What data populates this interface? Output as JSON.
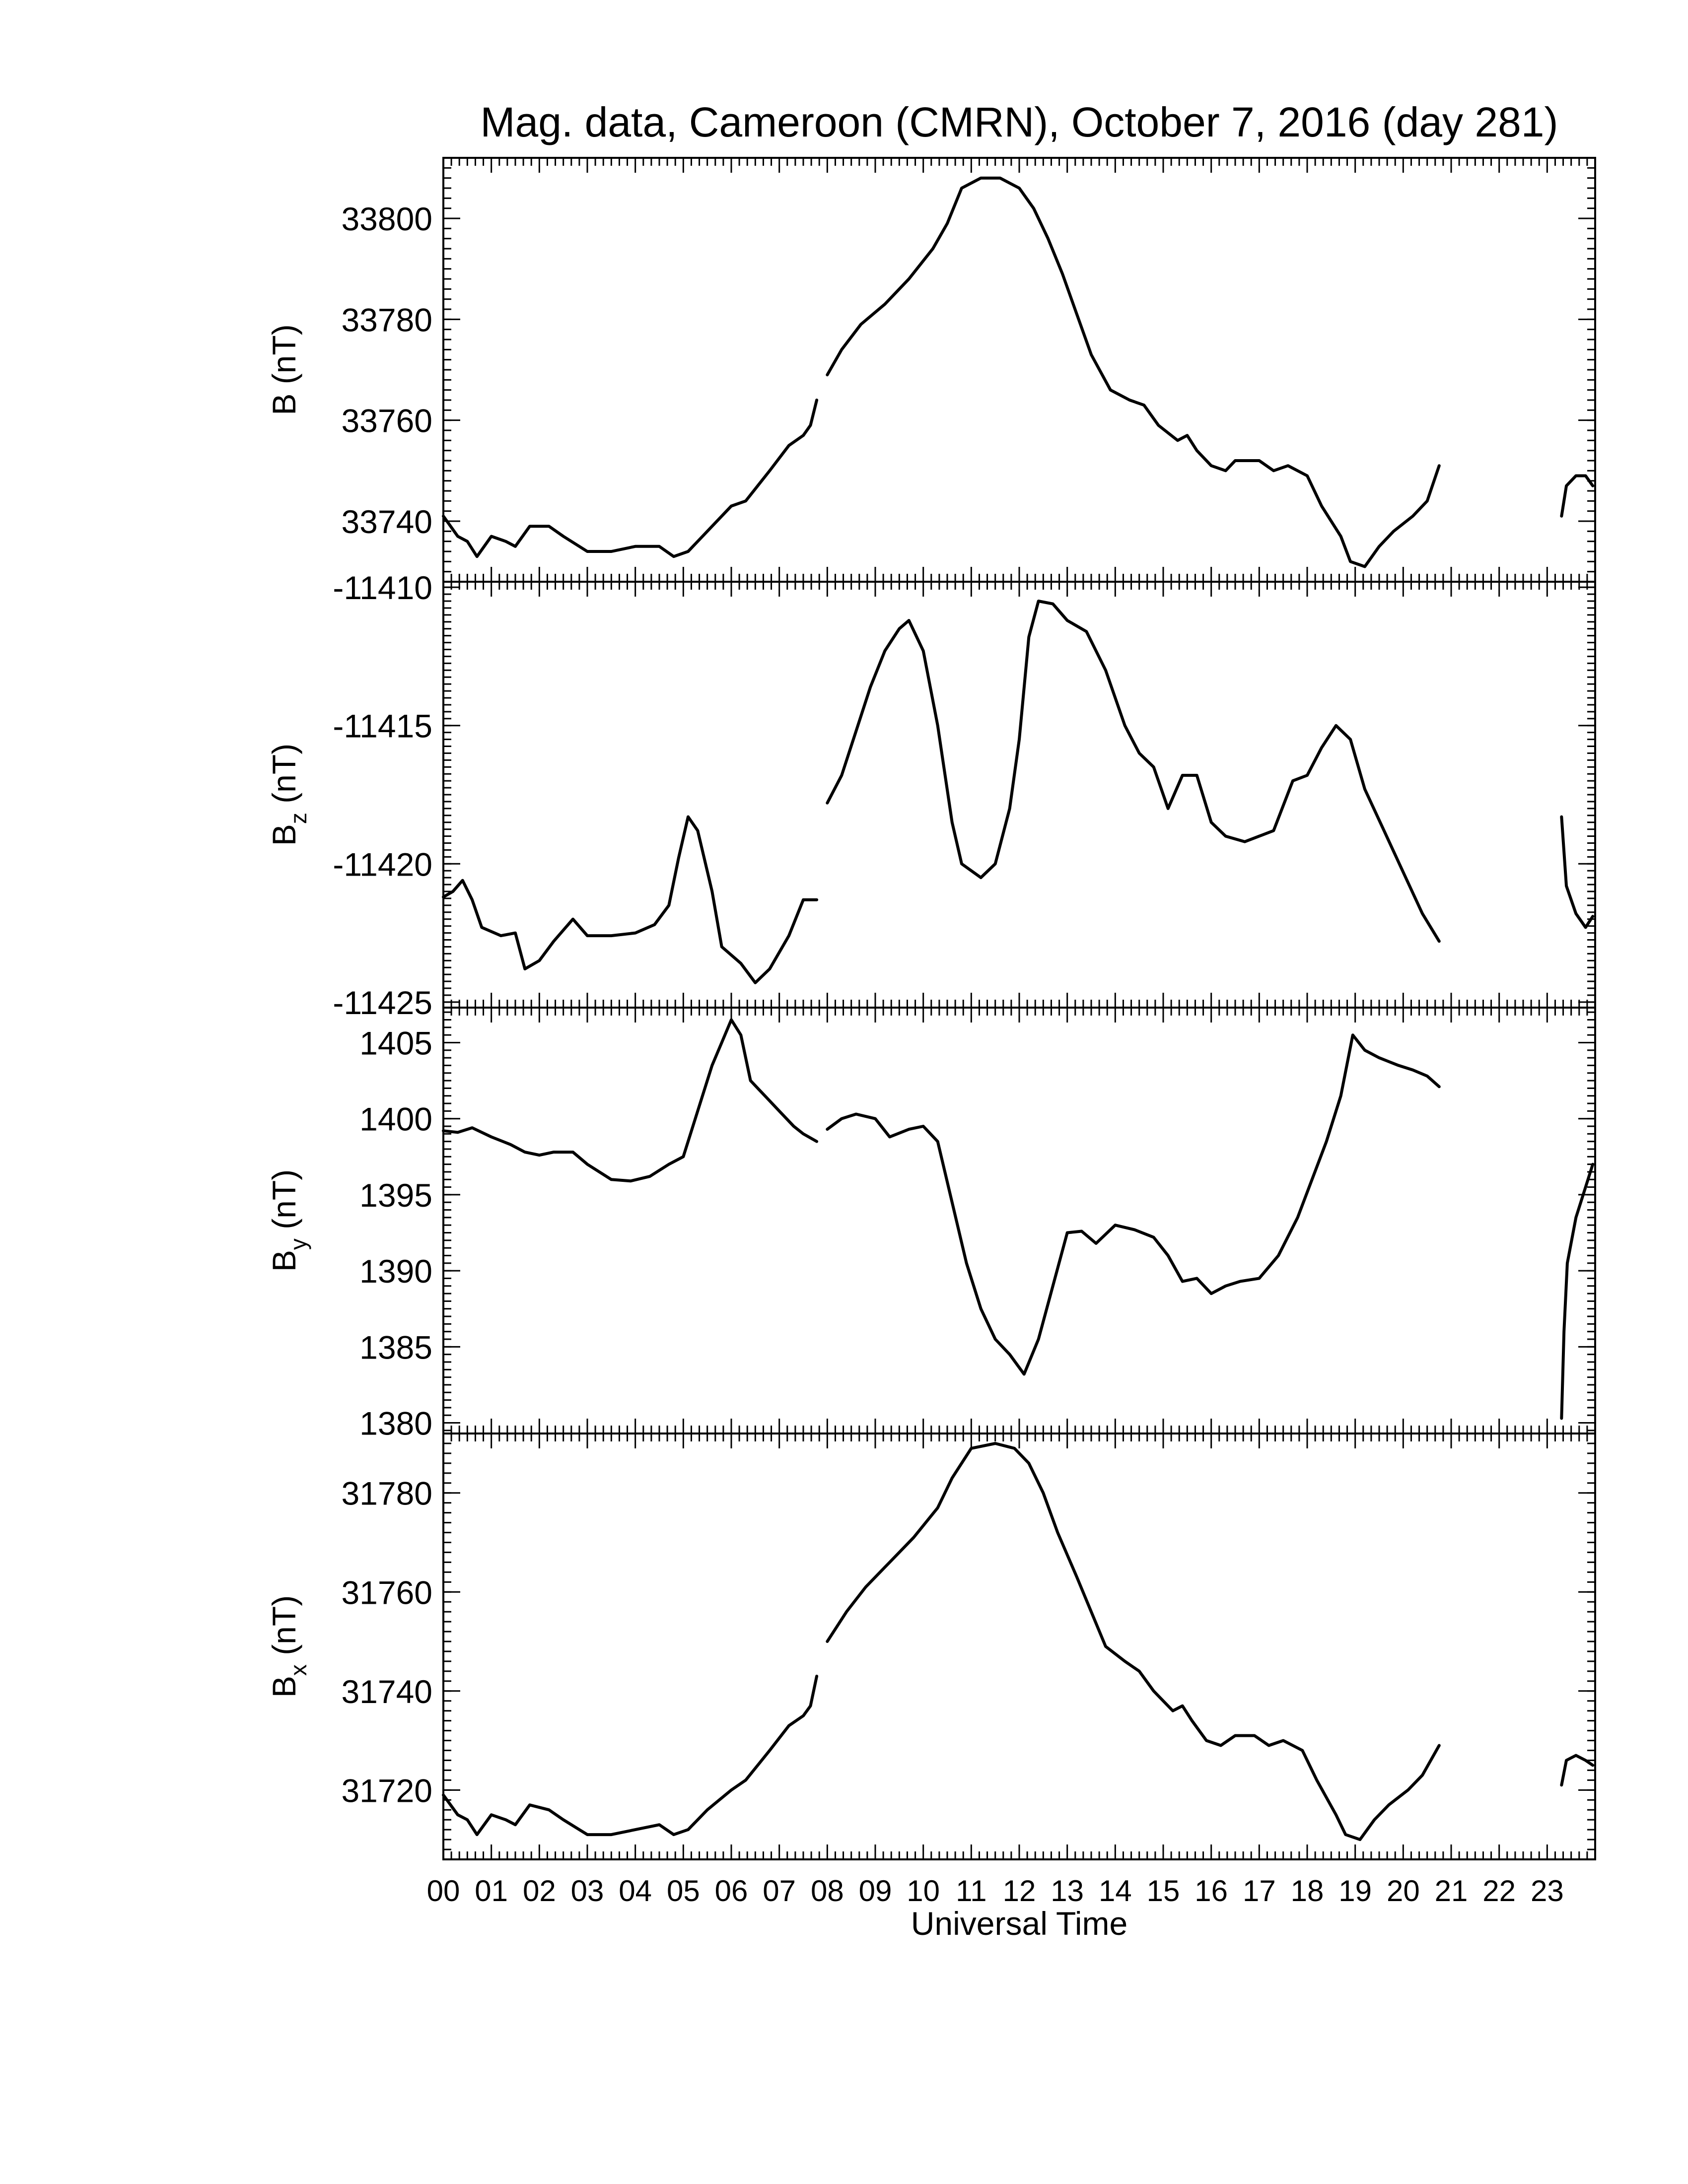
{
  "title": "Mag. data, Cameroon (CMRN), October 7, 2016 (day 281)",
  "chart_data": [
    {
      "type": "line",
      "ylabel": "B (nT)",
      "ylabel_main": "B",
      "ylabel_sub": "",
      "ylabel_unit": " (nT)",
      "ylim": [
        33728,
        33812
      ],
      "yticks": [
        33740,
        33760,
        33780,
        33800
      ],
      "yminor": 2,
      "segments": [
        [
          [
            0.0,
            33741
          ],
          [
            0.3,
            33737
          ],
          [
            0.5,
            33736
          ],
          [
            0.7,
            33733
          ],
          [
            1.0,
            33737
          ],
          [
            1.3,
            33736
          ],
          [
            1.5,
            33735
          ],
          [
            1.8,
            33739
          ],
          [
            2.2,
            33739
          ],
          [
            2.5,
            33737
          ],
          [
            3.0,
            33734
          ],
          [
            3.5,
            33734
          ],
          [
            4.0,
            33735
          ],
          [
            4.5,
            33735
          ],
          [
            4.8,
            33733
          ],
          [
            5.1,
            33734
          ],
          [
            5.5,
            33738
          ],
          [
            6.0,
            33743
          ],
          [
            6.3,
            33744
          ],
          [
            6.8,
            33750
          ],
          [
            7.2,
            33755
          ],
          [
            7.5,
            33757
          ],
          [
            7.65,
            33759
          ],
          [
            7.78,
            33764
          ]
        ],
        [
          [
            8.0,
            33769
          ],
          [
            8.3,
            33774
          ],
          [
            8.7,
            33779
          ],
          [
            9.2,
            33783
          ],
          [
            9.7,
            33788
          ],
          [
            10.2,
            33794
          ],
          [
            10.5,
            33799
          ],
          [
            10.8,
            33806
          ],
          [
            11.2,
            33808
          ],
          [
            11.6,
            33808
          ],
          [
            12.0,
            33806
          ],
          [
            12.3,
            33802
          ],
          [
            12.6,
            33796
          ],
          [
            12.9,
            33789
          ],
          [
            13.2,
            33781
          ],
          [
            13.5,
            33773
          ],
          [
            13.9,
            33766
          ],
          [
            14.3,
            33764
          ],
          [
            14.6,
            33763
          ],
          [
            14.9,
            33759
          ],
          [
            15.3,
            33756
          ],
          [
            15.5,
            33757
          ],
          [
            15.7,
            33754
          ],
          [
            16.0,
            33751
          ],
          [
            16.3,
            33750
          ],
          [
            16.5,
            33752
          ],
          [
            17.0,
            33752
          ],
          [
            17.3,
            33750
          ],
          [
            17.6,
            33751
          ],
          [
            18.0,
            33749
          ],
          [
            18.3,
            33743
          ],
          [
            18.7,
            33737
          ],
          [
            18.9,
            33732
          ],
          [
            19.2,
            33731
          ],
          [
            19.5,
            33735
          ],
          [
            19.8,
            33738
          ],
          [
            20.2,
            33741
          ],
          [
            20.5,
            33744
          ],
          [
            20.75,
            33751
          ]
        ],
        [
          [
            23.3,
            33741
          ],
          [
            23.4,
            33747
          ],
          [
            23.6,
            33749
          ],
          [
            23.8,
            33749
          ],
          [
            23.95,
            33747
          ]
        ]
      ]
    },
    {
      "type": "line",
      "ylabel": "Bz (nT)",
      "ylabel_main": "B",
      "ylabel_sub": "z",
      "ylabel_unit": " (nT)",
      "ylim": [
        -11425.2,
        -11409.8
      ],
      "yticks": [
        -11425,
        -11420,
        -11415,
        -11410
      ],
      "yminor": 0.25,
      "segments": [
        [
          [
            0.0,
            -11421.2
          ],
          [
            0.2,
            -11421.0
          ],
          [
            0.4,
            -11420.6
          ],
          [
            0.6,
            -11421.3
          ],
          [
            0.8,
            -11422.3
          ],
          [
            1.2,
            -11422.6
          ],
          [
            1.5,
            -11422.5
          ],
          [
            1.7,
            -11423.8
          ],
          [
            2.0,
            -11423.5
          ],
          [
            2.3,
            -11422.8
          ],
          [
            2.7,
            -11422.0
          ],
          [
            3.0,
            -11422.6
          ],
          [
            3.5,
            -11422.6
          ],
          [
            4.0,
            -11422.5
          ],
          [
            4.4,
            -11422.2
          ],
          [
            4.7,
            -11421.5
          ],
          [
            4.9,
            -11419.8
          ],
          [
            5.1,
            -11418.3
          ],
          [
            5.3,
            -11418.8
          ],
          [
            5.6,
            -11421.0
          ],
          [
            5.8,
            -11423.0
          ],
          [
            6.2,
            -11423.6
          ],
          [
            6.5,
            -11424.3
          ],
          [
            6.8,
            -11423.8
          ],
          [
            7.2,
            -11422.6
          ],
          [
            7.5,
            -11421.3
          ],
          [
            7.78,
            -11421.3
          ]
        ],
        [
          [
            8.0,
            -11417.8
          ],
          [
            8.3,
            -11416.8
          ],
          [
            8.6,
            -11415.2
          ],
          [
            8.9,
            -11413.6
          ],
          [
            9.2,
            -11412.3
          ],
          [
            9.5,
            -11411.5
          ],
          [
            9.7,
            -11411.2
          ],
          [
            10.0,
            -11412.3
          ],
          [
            10.3,
            -11415.0
          ],
          [
            10.6,
            -11418.5
          ],
          [
            10.8,
            -11420.0
          ],
          [
            11.2,
            -11420.5
          ],
          [
            11.5,
            -11420.0
          ],
          [
            11.8,
            -11418.0
          ],
          [
            12.0,
            -11415.5
          ],
          [
            12.2,
            -11411.8
          ],
          [
            12.4,
            -11410.5
          ],
          [
            12.7,
            -11410.6
          ],
          [
            13.0,
            -11411.2
          ],
          [
            13.4,
            -11411.6
          ],
          [
            13.8,
            -11413.0
          ],
          [
            14.2,
            -11415.0
          ],
          [
            14.5,
            -11416.0
          ],
          [
            14.8,
            -11416.5
          ],
          [
            15.1,
            -11418.0
          ],
          [
            15.4,
            -11416.8
          ],
          [
            15.7,
            -11416.8
          ],
          [
            16.0,
            -11418.5
          ],
          [
            16.3,
            -11419.0
          ],
          [
            16.7,
            -11419.2
          ],
          [
            17.0,
            -11419.0
          ],
          [
            17.3,
            -11418.8
          ],
          [
            17.7,
            -11417.0
          ],
          [
            18.0,
            -11416.8
          ],
          [
            18.3,
            -11415.8
          ],
          [
            18.6,
            -11415.0
          ],
          [
            18.9,
            -11415.5
          ],
          [
            19.2,
            -11417.3
          ],
          [
            19.6,
            -11418.8
          ],
          [
            20.0,
            -11420.3
          ],
          [
            20.4,
            -11421.8
          ],
          [
            20.75,
            -11422.8
          ]
        ],
        [
          [
            23.3,
            -11418.3
          ],
          [
            23.4,
            -11420.8
          ],
          [
            23.6,
            -11421.8
          ],
          [
            23.8,
            -11422.3
          ],
          [
            23.95,
            -11421.9
          ]
        ]
      ]
    },
    {
      "type": "line",
      "ylabel": "By (nT)",
      "ylabel_main": "B",
      "ylabel_sub": "y",
      "ylabel_unit": " (nT)",
      "ylim": [
        1379.3,
        1407.3
      ],
      "yticks": [
        1380,
        1385,
        1390,
        1395,
        1400,
        1405
      ],
      "yminor": 0.5,
      "segments": [
        [
          [
            0.0,
            1399.2
          ],
          [
            0.3,
            1399.1
          ],
          [
            0.6,
            1399.4
          ],
          [
            1.0,
            1398.8
          ],
          [
            1.4,
            1398.3
          ],
          [
            1.7,
            1397.8
          ],
          [
            2.0,
            1397.6
          ],
          [
            2.3,
            1397.8
          ],
          [
            2.7,
            1397.8
          ],
          [
            3.0,
            1397.0
          ],
          [
            3.5,
            1396.0
          ],
          [
            3.9,
            1395.9
          ],
          [
            4.3,
            1396.2
          ],
          [
            4.7,
            1397.0
          ],
          [
            5.0,
            1397.5
          ],
          [
            5.3,
            1400.5
          ],
          [
            5.6,
            1403.5
          ],
          [
            5.8,
            1405.0
          ],
          [
            6.0,
            1406.5
          ],
          [
            6.2,
            1405.5
          ],
          [
            6.4,
            1402.5
          ],
          [
            6.7,
            1401.5
          ],
          [
            7.0,
            1400.5
          ],
          [
            7.3,
            1399.5
          ],
          [
            7.5,
            1399.0
          ],
          [
            7.78,
            1398.5
          ]
        ],
        [
          [
            8.0,
            1399.3
          ],
          [
            8.3,
            1400.0
          ],
          [
            8.6,
            1400.3
          ],
          [
            9.0,
            1400.0
          ],
          [
            9.3,
            1398.8
          ],
          [
            9.7,
            1399.3
          ],
          [
            10.0,
            1399.5
          ],
          [
            10.3,
            1398.5
          ],
          [
            10.6,
            1394.5
          ],
          [
            10.9,
            1390.5
          ],
          [
            11.2,
            1387.5
          ],
          [
            11.5,
            1385.5
          ],
          [
            11.8,
            1384.5
          ],
          [
            12.1,
            1383.2
          ],
          [
            12.4,
            1385.5
          ],
          [
            12.7,
            1389.0
          ],
          [
            13.0,
            1392.5
          ],
          [
            13.3,
            1392.6
          ],
          [
            13.6,
            1391.8
          ],
          [
            14.0,
            1393.0
          ],
          [
            14.4,
            1392.7
          ],
          [
            14.8,
            1392.2
          ],
          [
            15.1,
            1391.0
          ],
          [
            15.4,
            1389.3
          ],
          [
            15.7,
            1389.5
          ],
          [
            16.0,
            1388.5
          ],
          [
            16.3,
            1389.0
          ],
          [
            16.6,
            1389.3
          ],
          [
            17.0,
            1389.5
          ],
          [
            17.4,
            1391.0
          ],
          [
            17.8,
            1393.5
          ],
          [
            18.1,
            1396.0
          ],
          [
            18.4,
            1398.5
          ],
          [
            18.7,
            1401.5
          ],
          [
            18.95,
            1405.5
          ],
          [
            19.2,
            1404.5
          ],
          [
            19.5,
            1404.0
          ],
          [
            19.9,
            1403.5
          ],
          [
            20.2,
            1403.2
          ],
          [
            20.5,
            1402.8
          ],
          [
            20.75,
            1402.1
          ]
        ],
        [
          [
            23.3,
            1380.3
          ],
          [
            23.35,
            1386.0
          ],
          [
            23.42,
            1390.5
          ],
          [
            23.6,
            1393.5
          ],
          [
            23.8,
            1395.5
          ],
          [
            23.95,
            1397.0
          ]
        ]
      ]
    },
    {
      "type": "line",
      "ylabel": "Bx (nT)",
      "ylabel_main": "B",
      "ylabel_sub": "x",
      "ylabel_unit": " (nT)",
      "xlabel": "Universal Time",
      "xlim": [
        0,
        24
      ],
      "xtick_labels": [
        "00",
        "01",
        "02",
        "03",
        "04",
        "05",
        "06",
        "07",
        "08",
        "09",
        "10",
        "11",
        "12",
        "13",
        "14",
        "15",
        "16",
        "17",
        "18",
        "19",
        "20",
        "21",
        "22",
        "23"
      ],
      "ylim": [
        31706,
        31792
      ],
      "yticks": [
        31720,
        31740,
        31760,
        31780
      ],
      "yminor": 2,
      "segments": [
        [
          [
            0.0,
            31719
          ],
          [
            0.3,
            31715
          ],
          [
            0.5,
            31714
          ],
          [
            0.7,
            31711
          ],
          [
            1.0,
            31715
          ],
          [
            1.3,
            31714
          ],
          [
            1.5,
            31713
          ],
          [
            1.8,
            31717
          ],
          [
            2.2,
            31716
          ],
          [
            2.5,
            31714
          ],
          [
            3.0,
            31711
          ],
          [
            3.5,
            31711
          ],
          [
            4.0,
            31712
          ],
          [
            4.5,
            31713
          ],
          [
            4.8,
            31711
          ],
          [
            5.1,
            31712
          ],
          [
            5.5,
            31716
          ],
          [
            6.0,
            31720
          ],
          [
            6.3,
            31722
          ],
          [
            6.8,
            31728
          ],
          [
            7.2,
            31733
          ],
          [
            7.5,
            31735
          ],
          [
            7.65,
            31737
          ],
          [
            7.78,
            31743
          ]
        ],
        [
          [
            8.0,
            31750
          ],
          [
            8.4,
            31756
          ],
          [
            8.8,
            31761
          ],
          [
            9.3,
            31766
          ],
          [
            9.8,
            31771
          ],
          [
            10.3,
            31777
          ],
          [
            10.6,
            31783
          ],
          [
            11.0,
            31789
          ],
          [
            11.5,
            31790
          ],
          [
            11.9,
            31789
          ],
          [
            12.2,
            31786
          ],
          [
            12.5,
            31780
          ],
          [
            12.8,
            31772
          ],
          [
            13.2,
            31763
          ],
          [
            13.5,
            31756
          ],
          [
            13.8,
            31749
          ],
          [
            14.2,
            31746
          ],
          [
            14.5,
            31744
          ],
          [
            14.8,
            31740
          ],
          [
            15.2,
            31736
          ],
          [
            15.4,
            31737
          ],
          [
            15.6,
            31734
          ],
          [
            15.9,
            31730
          ],
          [
            16.2,
            31729
          ],
          [
            16.5,
            31731
          ],
          [
            16.9,
            31731
          ],
          [
            17.2,
            31729
          ],
          [
            17.5,
            31730
          ],
          [
            17.9,
            31728
          ],
          [
            18.2,
            31722
          ],
          [
            18.6,
            31715
          ],
          [
            18.8,
            31711
          ],
          [
            19.1,
            31710
          ],
          [
            19.4,
            31714
          ],
          [
            19.7,
            31717
          ],
          [
            20.1,
            31720
          ],
          [
            20.4,
            31723
          ],
          [
            20.75,
            31729
          ]
        ],
        [
          [
            23.3,
            31721
          ],
          [
            23.4,
            31726
          ],
          [
            23.6,
            31727
          ],
          [
            23.8,
            31726
          ],
          [
            23.95,
            31725
          ]
        ]
      ]
    }
  ]
}
